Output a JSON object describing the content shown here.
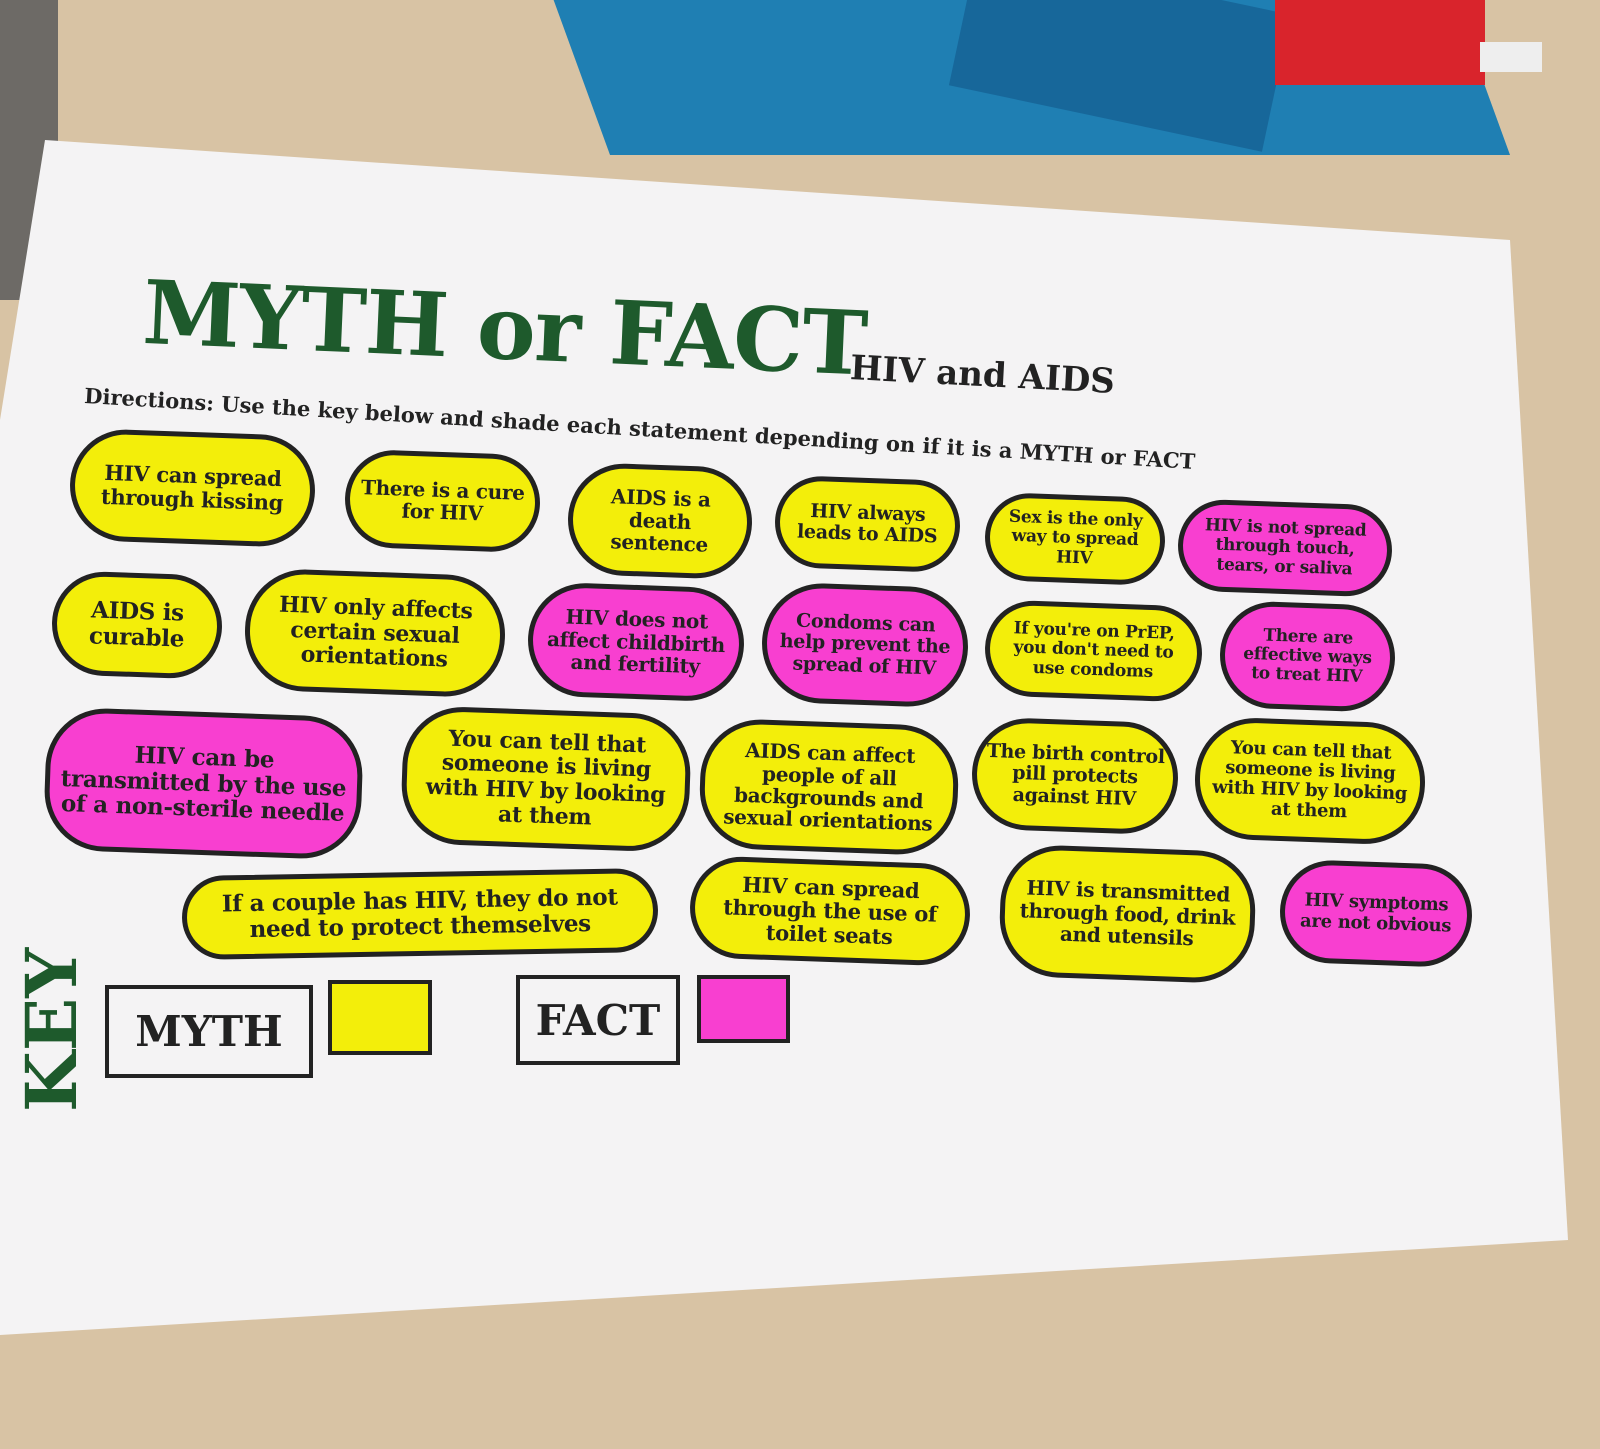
{
  "worksheet": {
    "title": "MYTH or FACT",
    "subtitle": "HIV and AIDS",
    "directions": "Directions:  Use the key below and shade each statement depending on if it is a MYTH or FACT"
  },
  "colors": {
    "myth": "#f3ee0a",
    "fact": "#f83fd0",
    "title_green": "#1e5a2c"
  },
  "statements": [
    {
      "text": "HIV can spread through kissing",
      "shade": "myth"
    },
    {
      "text": "There is a cure for HIV",
      "shade": "myth"
    },
    {
      "text": "AIDS is a death sentence",
      "shade": "myth"
    },
    {
      "text": "HIV always leads to AIDS",
      "shade": "myth"
    },
    {
      "text": "Sex is the only way to spread HIV",
      "shade": "myth"
    },
    {
      "text": "HIV is not spread through touch, tears, or saliva",
      "shade": "fact"
    },
    {
      "text": "AIDS is curable",
      "shade": "myth"
    },
    {
      "text": "HIV only affects certain sexual orientations",
      "shade": "myth"
    },
    {
      "text": "HIV does not affect childbirth and fertility",
      "shade": "fact"
    },
    {
      "text": "Condoms can help prevent the spread of HIV",
      "shade": "fact"
    },
    {
      "text": "If you're on PrEP, you don't need to use condoms",
      "shade": "myth"
    },
    {
      "text": "There are effective ways to treat HIV",
      "shade": "fact"
    },
    {
      "text": "HIV can be transmitted by the use of a non-sterile needle",
      "shade": "fact"
    },
    {
      "text": "You can tell that someone is living with HIV by looking at them",
      "shade": "myth"
    },
    {
      "text": "AIDS can affect people of all backgrounds and sexual orientations",
      "shade": "myth"
    },
    {
      "text": "The birth control pill protects against HIV",
      "shade": "myth"
    },
    {
      "text": "You can tell that someone is living with HIV by looking at them",
      "shade": "myth"
    },
    {
      "text": "If a couple has HIV, they do not need to protect themselves",
      "shade": "myth"
    },
    {
      "text": "HIV can spread through the use of toilet seats",
      "shade": "myth"
    },
    {
      "text": "HIV is transmitted through food, drink and utensils",
      "shade": "myth"
    },
    {
      "text": "HIV symptoms are not obvious",
      "shade": "fact"
    }
  ],
  "key": {
    "label": "KEY",
    "myth_label": "MYTH",
    "fact_label": "FACT"
  }
}
